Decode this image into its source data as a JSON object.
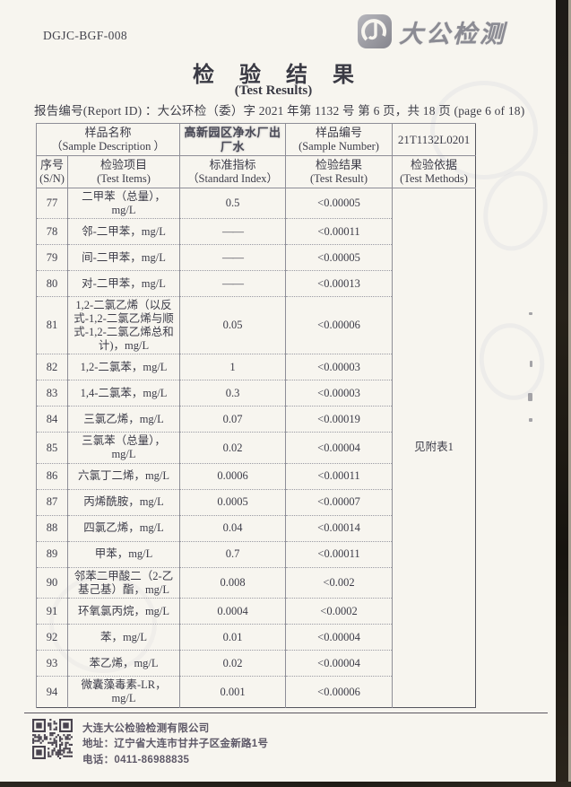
{
  "page": {
    "form_code": "DGJC-BGF-008",
    "logo_text": "大公检测",
    "title": "检 验 结 果",
    "subtitle": "(Test Results)",
    "report_line": "报告编号(Report ID) ：大公环检（委）字 2021 年第 1132 号  第 6 页，共 18 页  (page 6 of 18)"
  },
  "table": {
    "sample": {
      "name_label": "样品名称",
      "name_label_en": "（Sample Description ）",
      "name_value": "高新园区净水厂出厂水",
      "number_label": "样品编号",
      "number_label_en": "(Sample  Number)",
      "number_value": "21T1132L0201"
    },
    "columns": [
      {
        "label": "序号",
        "en": "(S/N)"
      },
      {
        "label": "检验项目",
        "en": "(Test Items)"
      },
      {
        "label": "标准指标",
        "en": "（Standard Index）"
      },
      {
        "label": "检验结果",
        "en": "(Test Result)"
      },
      {
        "label": "检验依据",
        "en": "(Test Methods)"
      }
    ],
    "method_note": "见附表1",
    "rows": [
      {
        "sn": "77",
        "item": "二甲苯（总量），mg/L",
        "standard": "0.5",
        "result": "<0.00005"
      },
      {
        "sn": "78",
        "item": "邻-二甲苯，mg/L",
        "standard": "——",
        "result": "<0.00011"
      },
      {
        "sn": "79",
        "item": "间-二甲苯，mg/L",
        "standard": "——",
        "result": "<0.00005"
      },
      {
        "sn": "80",
        "item": "对-二甲苯，mg/L",
        "standard": "——",
        "result": "<0.00013"
      },
      {
        "sn": "81",
        "item": "1,2-二氯乙烯（以反式-1,2-二氯乙烯与顺式-1,2-二氯乙烯总和计)，mg/L",
        "standard": "0.05",
        "result": "<0.00006"
      },
      {
        "sn": "82",
        "item": "1,2-二氯苯，mg/L",
        "standard": "1",
        "result": "<0.00003"
      },
      {
        "sn": "83",
        "item": "1,4-二氯苯，mg/L",
        "standard": "0.3",
        "result": "<0.00003"
      },
      {
        "sn": "84",
        "item": "三氯乙烯，mg/L",
        "standard": "0.07",
        "result": "<0.00019"
      },
      {
        "sn": "85",
        "item": "三氯苯（总量），mg/L",
        "standard": "0.02",
        "result": "<0.00004"
      },
      {
        "sn": "86",
        "item": "六氯丁二烯，mg/L",
        "standard": "0.0006",
        "result": "<0.00011"
      },
      {
        "sn": "87",
        "item": "丙烯酰胺，mg/L",
        "standard": "0.0005",
        "result": "<0.00007"
      },
      {
        "sn": "88",
        "item": "四氯乙烯，mg/L",
        "standard": "0.04",
        "result": "<0.00014"
      },
      {
        "sn": "89",
        "item": "甲苯，mg/L",
        "standard": "0.7",
        "result": "<0.00011"
      },
      {
        "sn": "90",
        "item": "邻苯二甲酸二（2-乙基己基）酯，mg/L",
        "standard": "0.008",
        "result": "<0.002"
      },
      {
        "sn": "91",
        "item": "环氧氯丙烷，mg/L",
        "standard": "0.0004",
        "result": "<0.0002"
      },
      {
        "sn": "92",
        "item": "苯，mg/L",
        "standard": "0.01",
        "result": "<0.00004"
      },
      {
        "sn": "93",
        "item": "苯乙烯，mg/L",
        "standard": "0.02",
        "result": "<0.00004"
      },
      {
        "sn": "94",
        "item": "微囊藻毒素-LR，mg/L",
        "standard": "0.001",
        "result": "<0.00006"
      }
    ]
  },
  "footer": {
    "company": "大连大公检验检测有限公司",
    "address": "地址：辽宁省大连市甘井子区金新路1号",
    "phone": "电话：0411-86988835"
  },
  "colors": {
    "paper": "#f7f5ef",
    "ink": "#3c3c48",
    "logo_gray": "#8b8b93",
    "footer_ink": "#5e5968",
    "scan_edge": "#1d1a17"
  }
}
